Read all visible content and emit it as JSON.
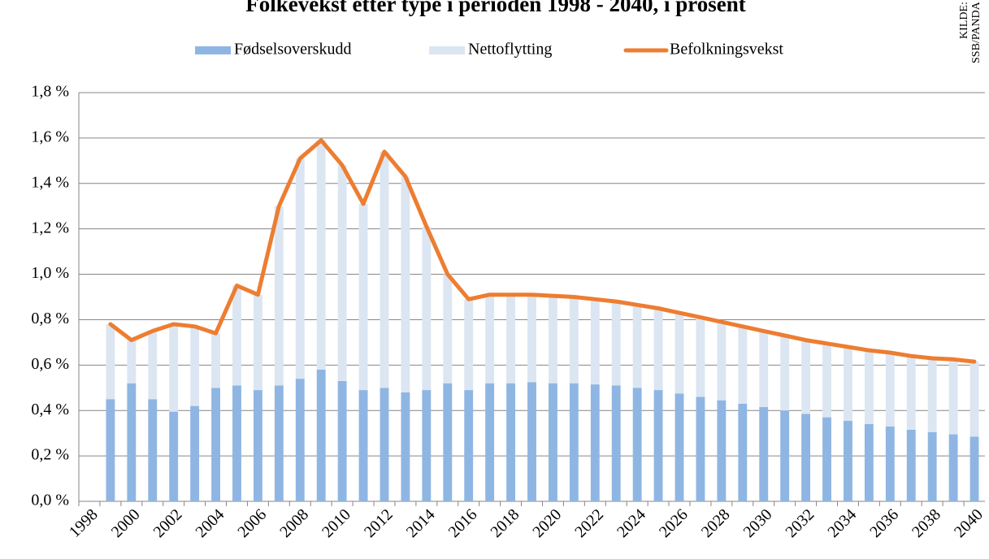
{
  "chart_data": {
    "type": "stacked_bar_line",
    "title": "Folkevekst etter type i perioden 1998 - 2040, i prosent",
    "source": "KILDE: SSB/PANDA",
    "categories": [
      "1998",
      null,
      "2000",
      null,
      "2002",
      null,
      "2004",
      null,
      "2006",
      null,
      "2008",
      null,
      "2010",
      null,
      "2012",
      null,
      "2014",
      null,
      "2016",
      null,
      "2018",
      null,
      "2020",
      null,
      "2022",
      null,
      "2024",
      null,
      "2026",
      null,
      "2028",
      null,
      "2030",
      null,
      "2032",
      null,
      "2034",
      null,
      "2036",
      null,
      "2038",
      null,
      "2040"
    ],
    "series": [
      {
        "name": "Fødselsoverskudd",
        "color": "#8fb6e3",
        "kind": "bar",
        "values": [
          null,
          0.45,
          0.52,
          0.45,
          0.395,
          0.42,
          0.5,
          0.51,
          0.49,
          0.51,
          0.54,
          0.58,
          0.53,
          0.49,
          0.5,
          0.48,
          0.49,
          0.52,
          0.49,
          0.52,
          0.52,
          0.525,
          0.52,
          0.52,
          0.515,
          0.51,
          0.5,
          0.49,
          0.475,
          0.46,
          0.445,
          0.43,
          0.415,
          0.4,
          0.385,
          0.37,
          0.355,
          0.34,
          0.33,
          0.315,
          0.305,
          0.295,
          0.285
        ]
      },
      {
        "name": "Nettoflytting",
        "color": "#dce6f2",
        "kind": "bar",
        "values": [
          null,
          0.33,
          0.19,
          0.3,
          0.385,
          0.35,
          0.24,
          0.44,
          0.42,
          0.79,
          0.97,
          1.01,
          0.95,
          0.82,
          1.04,
          0.95,
          0.72,
          0.48,
          0.4,
          0.39,
          0.39,
          0.385,
          0.385,
          0.38,
          0.375,
          0.37,
          0.365,
          0.36,
          0.355,
          0.35,
          0.345,
          0.34,
          0.335,
          0.33,
          0.325,
          0.325,
          0.325,
          0.325,
          0.325,
          0.325,
          0.325,
          0.33,
          0.33
        ]
      },
      {
        "name": "Befolkningsvekst",
        "color": "#ed7d31",
        "kind": "line",
        "values": [
          null,
          0.78,
          0.71,
          0.75,
          0.78,
          0.77,
          0.74,
          0.95,
          0.91,
          1.3,
          1.51,
          1.59,
          1.48,
          1.31,
          1.54,
          1.43,
          1.21,
          1.0,
          0.89,
          0.91,
          0.91,
          0.91,
          0.905,
          0.9,
          0.89,
          0.88,
          0.865,
          0.85,
          0.83,
          0.81,
          0.79,
          0.77,
          0.75,
          0.73,
          0.71,
          0.695,
          0.68,
          0.665,
          0.655,
          0.64,
          0.63,
          0.625,
          0.615
        ]
      }
    ],
    "ylim": [
      0,
      1.8
    ],
    "yticks": [
      {
        "value": 0,
        "label": "0,0 %"
      },
      {
        "value": 0.2,
        "label": "0,2 %"
      },
      {
        "value": 0.4,
        "label": "0,4 %"
      },
      {
        "value": 0.6,
        "label": "0,6 %"
      },
      {
        "value": 0.8,
        "label": "0,8 %"
      },
      {
        "value": 1.0,
        "label": "1,0 %"
      },
      {
        "value": 1.2,
        "label": "1,2 %"
      },
      {
        "value": 1.4,
        "label": "1,4 %"
      },
      {
        "value": 1.6,
        "label": "1,6 %"
      },
      {
        "value": 1.8,
        "label": "1,8 %"
      }
    ],
    "grid": true,
    "legend": "top"
  }
}
